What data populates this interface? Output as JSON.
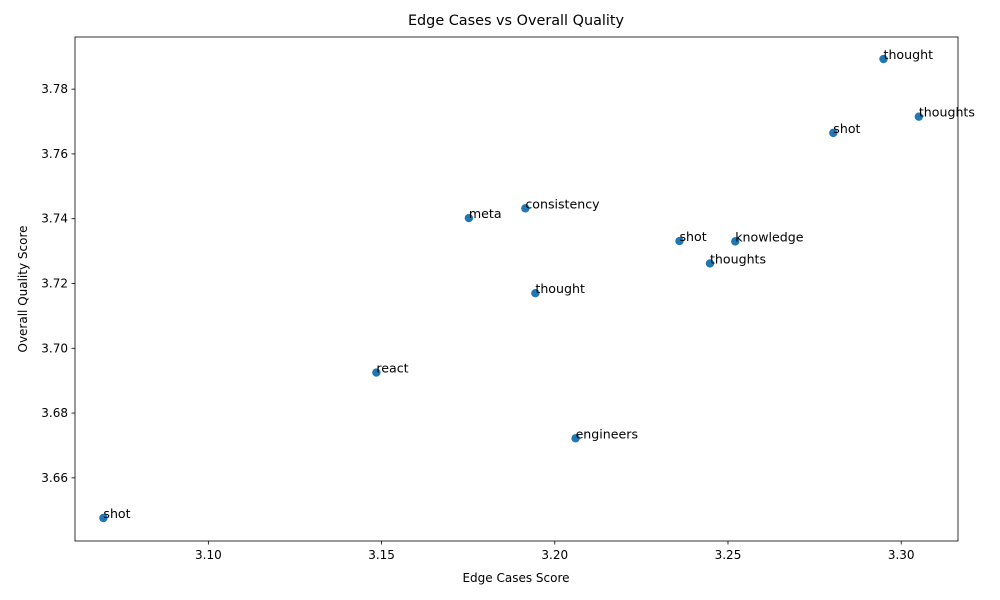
{
  "chart_data": {
    "type": "scatter",
    "title": "Edge Cases vs Overall Quality",
    "xlabel": "Edge Cases Score",
    "ylabel": "Overall Quality Score",
    "xlim": [
      3.0615,
      3.3164
    ],
    "ylim": [
      3.6405,
      3.7961
    ],
    "xticks": [
      3.1,
      3.15,
      3.2,
      3.25,
      3.3
    ],
    "yticks": [
      3.66,
      3.68,
      3.7,
      3.72,
      3.74,
      3.76,
      3.78
    ],
    "xtick_labels": [
      "3.10",
      "3.15",
      "3.20",
      "3.25",
      "3.30"
    ],
    "ytick_labels": [
      "3.66",
      "3.68",
      "3.70",
      "3.72",
      "3.74",
      "3.76",
      "3.78"
    ],
    "grid": false,
    "marker_color": "#1f77b4",
    "points": [
      {
        "label": "thought",
        "x": 3.2949,
        "y": 3.7893
      },
      {
        "label": "thoughts",
        "x": 3.3051,
        "y": 3.7715
      },
      {
        "label": "shot",
        "x": 3.2804,
        "y": 3.7665
      },
      {
        "label": "consistency",
        "x": 3.1915,
        "y": 3.7432
      },
      {
        "label": "meta",
        "x": 3.1752,
        "y": 3.7402
      },
      {
        "label": "shot",
        "x": 3.236,
        "y": 3.7331
      },
      {
        "label": "knowledge",
        "x": 3.2521,
        "y": 3.733
      },
      {
        "label": "thoughts",
        "x": 3.2448,
        "y": 3.7262
      },
      {
        "label": "thought",
        "x": 3.1944,
        "y": 3.717
      },
      {
        "label": "react",
        "x": 3.1485,
        "y": 3.6925
      },
      {
        "label": "engineers",
        "x": 3.206,
        "y": 3.6722
      },
      {
        "label": "shot",
        "x": 3.0697,
        "y": 3.6476
      }
    ]
  }
}
